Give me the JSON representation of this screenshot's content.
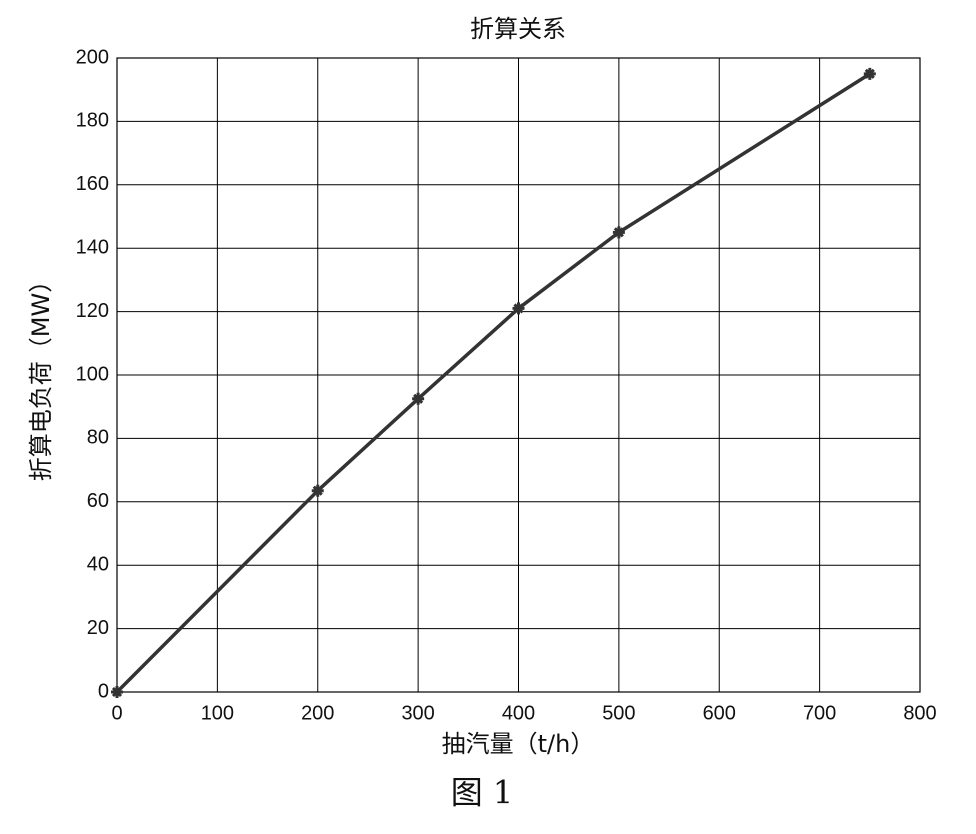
{
  "chart_data": {
    "type": "line",
    "title": "折算关系",
    "xlabel": "抽汽量（t/h）",
    "ylabel": "折算电负荷（MW）",
    "caption": "图 1",
    "x": [
      0,
      200,
      300,
      400,
      500,
      750
    ],
    "series": [
      {
        "name": "折算电负荷",
        "color": "#333333",
        "values": [
          0,
          63.5,
          92.5,
          121,
          145,
          195
        ]
      }
    ],
    "xlim": [
      0,
      800
    ],
    "xticks": [
      0,
      100,
      200,
      300,
      400,
      500,
      600,
      700,
      800
    ],
    "ylim": [
      0,
      200
    ],
    "yticks": [
      0,
      20,
      40,
      60,
      80,
      100,
      120,
      140,
      160,
      180,
      200
    ],
    "grid": true
  }
}
